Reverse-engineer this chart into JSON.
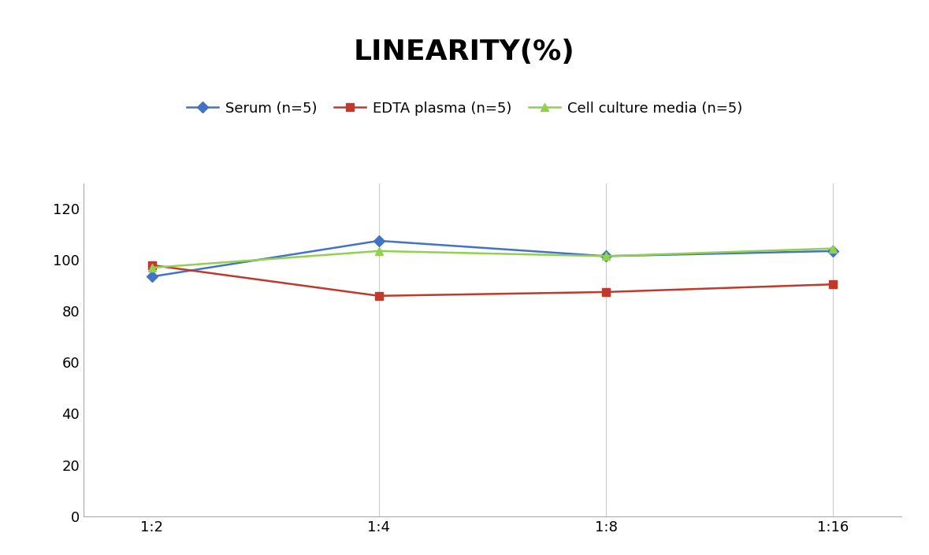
{
  "title": "LINEARITY(%)",
  "title_fontsize": 26,
  "title_fontweight": "bold",
  "x_labels": [
    "1:2",
    "1:4",
    "1:8",
    "1:16"
  ],
  "x_positions": [
    0,
    1,
    2,
    3
  ],
  "series": [
    {
      "label": "Serum (n=5)",
      "values": [
        93.5,
        107.5,
        101.5,
        103.5
      ],
      "color": "#4472C4",
      "marker": "D",
      "markersize": 7,
      "linewidth": 1.8
    },
    {
      "label": "EDTA plasma (n=5)",
      "values": [
        98.0,
        86.0,
        87.5,
        90.5
      ],
      "color": "#C0392B",
      "marker": "s",
      "markersize": 7,
      "linewidth": 1.8
    },
    {
      "label": "Cell culture media (n=5)",
      "values": [
        97.0,
        103.5,
        101.5,
        104.5
      ],
      "color": "#92D050",
      "marker": "^",
      "markersize": 7,
      "linewidth": 1.8
    }
  ],
  "ylim": [
    0,
    130
  ],
  "yticks": [
    0,
    20,
    40,
    60,
    80,
    100,
    120
  ],
  "grid_color": "#CCCCCC",
  "grid_linewidth": 0.8,
  "background_color": "#FFFFFF",
  "legend_fontsize": 13,
  "tick_fontsize": 13,
  "spine_color": "#AAAAAA"
}
